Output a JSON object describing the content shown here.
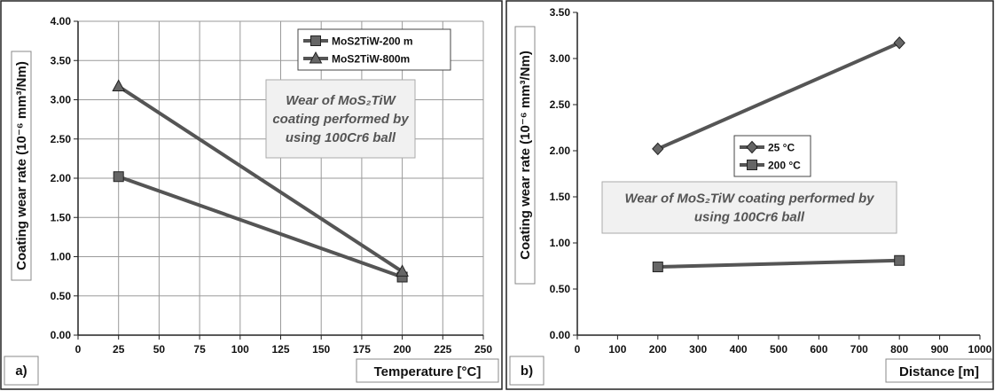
{
  "chart_data": [
    {
      "type": "line",
      "panel_label": "a)",
      "xlabel": "Temperature [°C]",
      "ylabel": "Coating wear rate (10⁻⁶ mm³/Nm)",
      "xlim": [
        0,
        250
      ],
      "ylim": [
        0,
        4
      ],
      "xticks": [
        0,
        25,
        50,
        75,
        100,
        125,
        150,
        175,
        200,
        225,
        250
      ],
      "yticks": [
        0,
        0.5,
        1,
        1.5,
        2,
        2.5,
        3,
        3.5,
        4
      ],
      "y_tick_decimals": 2,
      "grid": true,
      "legend_position": "top-right",
      "series": [
        {
          "name": "MoS2TiW-200 m",
          "marker": "square",
          "x": [
            25,
            200
          ],
          "y": [
            2.02,
            0.74
          ]
        },
        {
          "name": "MoS2TiW-800m",
          "marker": "triangle",
          "x": [
            25,
            200
          ],
          "y": [
            3.17,
            0.81
          ]
        }
      ],
      "annotation": {
        "lines": [
          "Wear of MoS₂TiW",
          "coating performed by",
          "using 100Cr6 ball"
        ]
      },
      "colors": {
        "line": "#555555",
        "grid": "#9a9a9a",
        "marker_fill": "#666666"
      }
    },
    {
      "type": "line",
      "panel_label": "b)",
      "xlabel": "Distance [m]",
      "ylabel": "Coating wear rate (10⁻⁶ mm³/Nm)",
      "xlim": [
        0,
        1000
      ],
      "ylim": [
        0,
        3.5
      ],
      "xticks": [
        0,
        100,
        200,
        300,
        400,
        500,
        600,
        700,
        800,
        900,
        1000
      ],
      "yticks": [
        0,
        0.5,
        1,
        1.5,
        2,
        2.5,
        3,
        3.5
      ],
      "y_tick_decimals": 2,
      "grid": false,
      "legend_position": "middle-left",
      "series": [
        {
          "name": "25 °C",
          "marker": "diamond",
          "x": [
            200,
            800
          ],
          "y": [
            2.02,
            3.17
          ]
        },
        {
          "name": "200 °C",
          "marker": "square",
          "x": [
            200,
            800
          ],
          "y": [
            0.74,
            0.81
          ]
        }
      ],
      "annotation": {
        "lines": [
          "Wear of MoS₂TiW coating performed by",
          "using 100Cr6 ball"
        ]
      },
      "colors": {
        "line": "#555555",
        "grid": "#9a9a9a",
        "marker_fill": "#666666"
      }
    }
  ]
}
